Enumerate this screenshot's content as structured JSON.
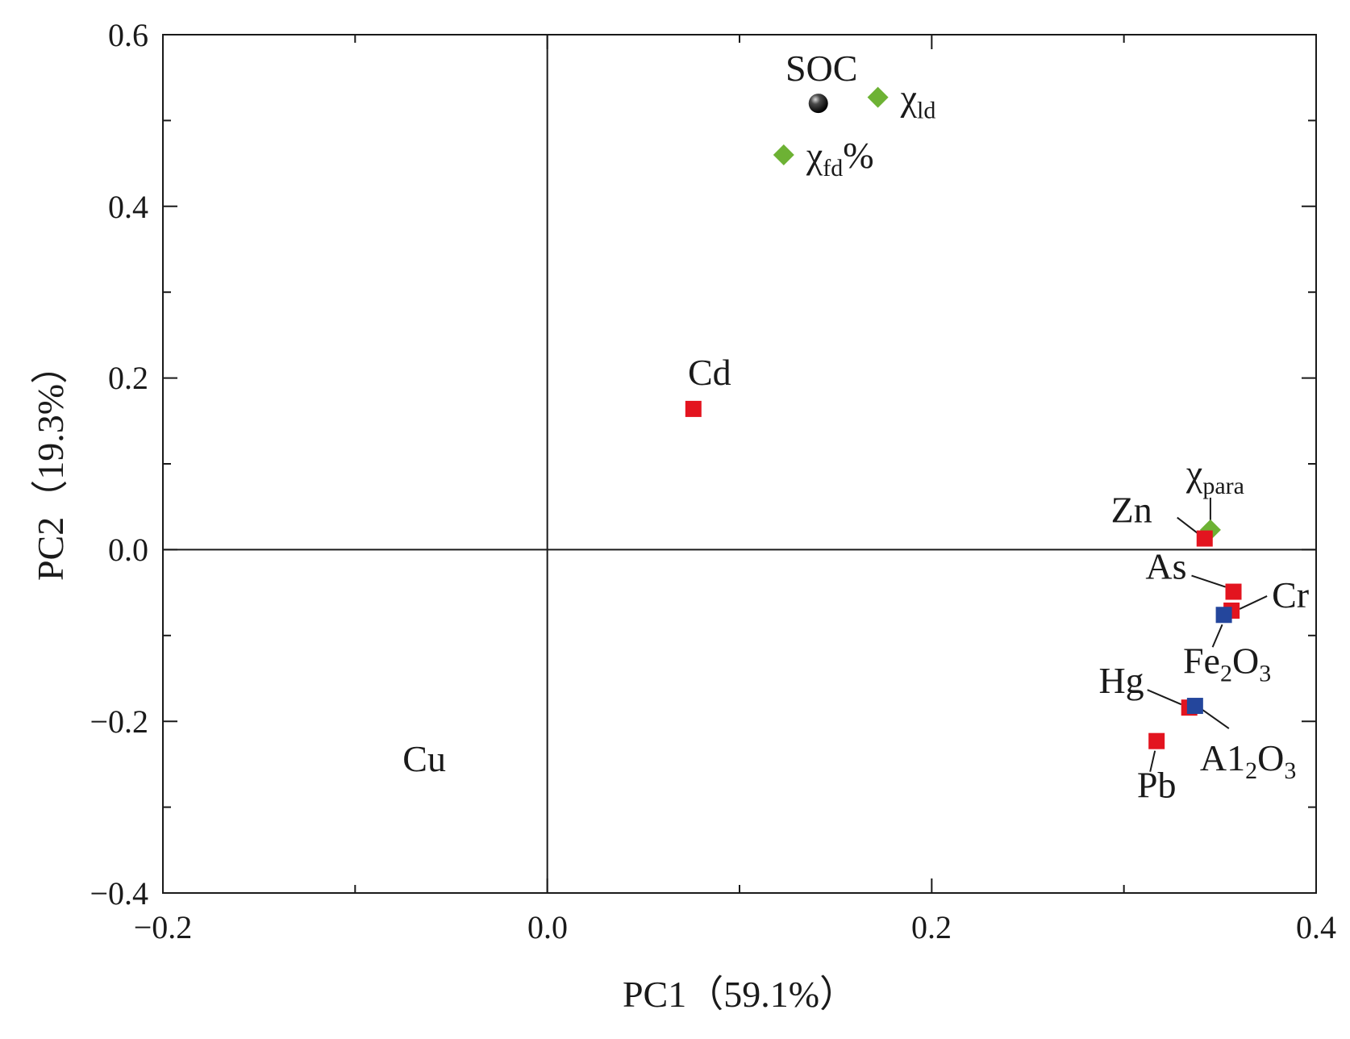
{
  "chart_data": {
    "type": "scatter",
    "title": "",
    "xlabel": "PC1（59.1%）",
    "ylabel": "PC2（19.3%）",
    "xlim": [
      -0.2,
      0.4
    ],
    "ylim": [
      -0.4,
      0.6
    ],
    "x_ticks": [
      "−0.2",
      "0.0",
      "0.2",
      "0.4"
    ],
    "y_ticks": [
      "−0.4",
      "−0.2",
      "0.0",
      "0.2",
      "0.4",
      "0.6"
    ],
    "grid": false,
    "reference_lines": {
      "x": 0,
      "y": 0
    },
    "colors": {
      "element": "#e3141f",
      "oxide": "#24469c",
      "magnetic": "#6db234",
      "soc": "#1a1a1a"
    },
    "points": [
      {
        "label": "SOC",
        "x": 0.141,
        "y": 0.52,
        "group": "soc",
        "marker": "sphere"
      },
      {
        "label": "χ",
        "sub": "ld",
        "x": 0.172,
        "y": 0.527,
        "group": "magnetic",
        "marker": "diamond"
      },
      {
        "label": "χ",
        "sub": "fd",
        "suffix": "%",
        "x": 0.123,
        "y": 0.46,
        "group": "magnetic",
        "marker": "diamond"
      },
      {
        "label": "Cd",
        "x": 0.076,
        "y": 0.164,
        "group": "element",
        "marker": "square"
      },
      {
        "label": "χ",
        "sub": "para",
        "x": 0.345,
        "y": 0.023,
        "group": "magnetic",
        "marker": "diamond"
      },
      {
        "label": "Zn",
        "x": 0.342,
        "y": 0.013,
        "group": "element",
        "marker": "square"
      },
      {
        "label": "As",
        "x": 0.357,
        "y": -0.049,
        "group": "element",
        "marker": "square"
      },
      {
        "label": "Cr",
        "x": 0.356,
        "y": -0.071,
        "group": "element",
        "marker": "square"
      },
      {
        "label": "Fe",
        "sub": "2",
        "suffix": "O",
        "sub2": "3",
        "x": 0.352,
        "y": -0.076,
        "group": "oxide",
        "marker": "square"
      },
      {
        "label": "Hg",
        "x": 0.334,
        "y": -0.184,
        "group": "element",
        "marker": "square"
      },
      {
        "label": "A1",
        "sub": "2",
        "suffix": "O",
        "sub2": "3",
        "x": 0.337,
        "y": -0.182,
        "group": "oxide",
        "marker": "square"
      },
      {
        "label": "Pb",
        "x": 0.317,
        "y": -0.223,
        "group": "element",
        "marker": "square"
      },
      {
        "label": "Cu",
        "x": -0.064,
        "y": -0.245,
        "group": "element",
        "marker": "none"
      }
    ]
  }
}
